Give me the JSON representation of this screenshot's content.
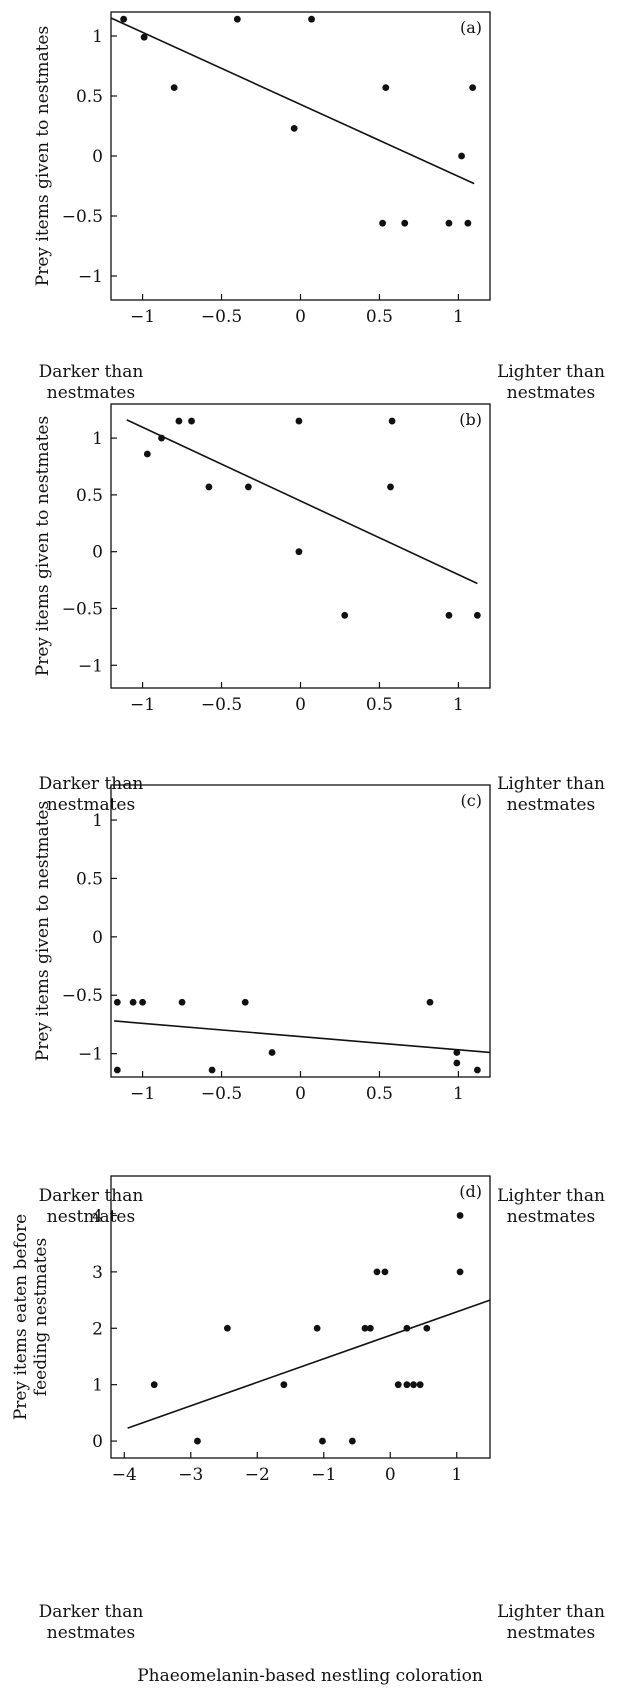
{
  "figure": {
    "xlabel": "Phaeomelanin-based nestling coloration",
    "left_note_line1": "Darker than",
    "left_note_line2": "nestmates",
    "right_note_line1": "Lighter than",
    "right_note_line2": "nestmates"
  },
  "chart_data": [
    {
      "type": "scatter",
      "panel_label": "(a)",
      "ylabel": "Prey items given to nestmates",
      "xlim": [
        -1.2,
        1.2
      ],
      "ylim": [
        -1.2,
        1.2
      ],
      "xticks": [
        -1,
        -0.5,
        0,
        0.5,
        1
      ],
      "xtick_labels": [
        "−1",
        "−0.5",
        "0",
        "0.5",
        "1"
      ],
      "yticks": [
        1,
        0.5,
        0,
        -0.5,
        -1
      ],
      "ytick_labels": [
        "1",
        "0.5",
        "0",
        "−0.5",
        "−1"
      ],
      "points": [
        [
          -1.12,
          1.14
        ],
        [
          -0.99,
          0.99
        ],
        [
          -0.8,
          0.57
        ],
        [
          -0.4,
          1.14
        ],
        [
          -0.04,
          0.23
        ],
        [
          0.07,
          1.14
        ],
        [
          0.52,
          -0.56
        ],
        [
          0.54,
          0.57
        ],
        [
          0.66,
          -0.56
        ],
        [
          0.94,
          -0.56
        ],
        [
          1.02,
          0.0
        ],
        [
          1.06,
          -0.56
        ],
        [
          1.09,
          0.57
        ]
      ],
      "fit_line": [
        [
          -1.2,
          1.15
        ],
        [
          1.1,
          -0.23
        ]
      ]
    },
    {
      "type": "scatter",
      "panel_label": "(b)",
      "ylabel": "Prey items given to nestmates",
      "xlim": [
        -1.2,
        1.2
      ],
      "ylim": [
        -1.2,
        1.3
      ],
      "xticks": [
        -1,
        -0.5,
        0,
        0.5,
        1
      ],
      "xtick_labels": [
        "−1",
        "−0.5",
        "0",
        "0.5",
        "1"
      ],
      "yticks": [
        1,
        0.5,
        0,
        -0.5,
        -1
      ],
      "ytick_labels": [
        "1",
        "0.5",
        "0",
        "−0.5",
        "−1"
      ],
      "points": [
        [
          -0.97,
          0.86
        ],
        [
          -0.88,
          1.0
        ],
        [
          -0.77,
          1.15
        ],
        [
          -0.69,
          1.15
        ],
        [
          -0.58,
          0.57
        ],
        [
          -0.33,
          0.57
        ],
        [
          -0.01,
          1.15
        ],
        [
          -0.01,
          0.0
        ],
        [
          0.28,
          -0.56
        ],
        [
          0.57,
          0.57
        ],
        [
          0.58,
          1.15
        ],
        [
          0.94,
          -0.56
        ],
        [
          1.12,
          -0.56
        ]
      ],
      "fit_line": [
        [
          -1.1,
          1.16
        ],
        [
          1.12,
          -0.28
        ]
      ]
    },
    {
      "type": "scatter",
      "panel_label": "(c)",
      "ylabel": "Prey items given to nestmates",
      "xlim": [
        -1.2,
        1.2
      ],
      "ylim": [
        -1.2,
        1.3
      ],
      "xticks": [
        -1,
        -0.5,
        0,
        0.5,
        1
      ],
      "xtick_labels": [
        "−1",
        "−0.5",
        "0",
        "0.5",
        "1"
      ],
      "yticks": [
        1,
        0.5,
        0,
        -0.5,
        -1
      ],
      "ytick_labels": [
        "1",
        "0.5",
        "0",
        "−0.5",
        "−1"
      ],
      "points": [
        [
          -1.16,
          -0.56
        ],
        [
          -1.16,
          -1.14
        ],
        [
          -1.06,
          -0.56
        ],
        [
          -1.0,
          -0.56
        ],
        [
          -0.75,
          -0.56
        ],
        [
          -0.35,
          -0.56
        ],
        [
          -0.56,
          -1.14
        ],
        [
          -0.18,
          -0.99
        ],
        [
          0.82,
          -0.56
        ],
        [
          0.99,
          -0.99
        ],
        [
          0.99,
          -1.08
        ],
        [
          1.12,
          -1.14
        ]
      ],
      "fit_line": [
        [
          -1.18,
          -0.72
        ],
        [
          1.2,
          -0.99
        ]
      ]
    },
    {
      "type": "scatter",
      "panel_label": "(d)",
      "ylabel": "Prey items eaten before feeding nestmates",
      "ylabel_line1": "Prey items eaten before",
      "ylabel_line2": "feeding nestmates",
      "xlim": [
        -4.2,
        1.5
      ],
      "ylim": [
        -0.3,
        4.7
      ],
      "xticks": [
        -4,
        -3,
        -2,
        -1,
        0,
        1
      ],
      "xtick_labels": [
        "−4",
        "−3",
        "−2",
        "−1",
        "0",
        "1"
      ],
      "yticks": [
        4,
        3,
        2,
        1,
        0
      ],
      "ytick_labels": [
        "4",
        "3",
        "2",
        "1",
        "0"
      ],
      "points": [
        [
          -3.55,
          1.0
        ],
        [
          -2.9,
          0.0
        ],
        [
          -2.45,
          2.0
        ],
        [
          -1.6,
          1.0
        ],
        [
          -1.1,
          2.0
        ],
        [
          -1.02,
          0.0
        ],
        [
          -0.57,
          0.0
        ],
        [
          -0.38,
          2.0
        ],
        [
          -0.3,
          2.0
        ],
        [
          -0.2,
          3.0
        ],
        [
          -0.08,
          3.0
        ],
        [
          0.12,
          1.0
        ],
        [
          0.25,
          1.0
        ],
        [
          0.25,
          2.0
        ],
        [
          0.35,
          1.0
        ],
        [
          0.45,
          1.0
        ],
        [
          0.55,
          2.0
        ],
        [
          1.05,
          3.0
        ],
        [
          1.05,
          4.0
        ]
      ],
      "fit_line": [
        [
          -3.95,
          0.23
        ],
        [
          1.5,
          2.5
        ]
      ]
    }
  ]
}
